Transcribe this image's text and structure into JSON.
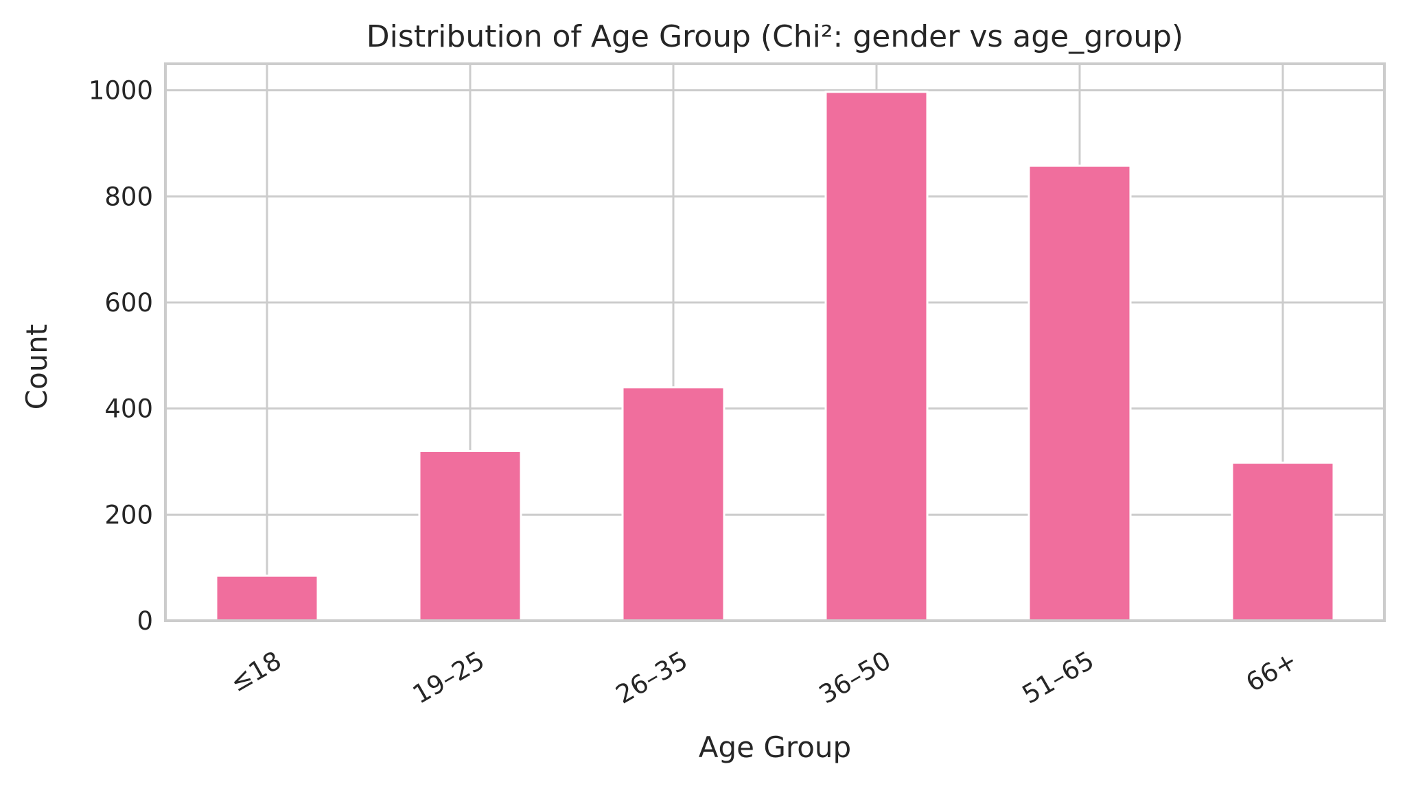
{
  "chart_data": {
    "type": "bar",
    "title": "Distribution of Age Group (Chi²: gender vs age_group)",
    "xlabel": "Age Group",
    "ylabel": "Count",
    "categories": [
      "≤18",
      "19–25",
      "26–35",
      "36–50",
      "51–65",
      "66+"
    ],
    "values": [
      85,
      320,
      440,
      997,
      858,
      298
    ],
    "ylim": [
      0,
      1050
    ],
    "yticks": [
      0,
      200,
      400,
      600,
      800,
      1000
    ],
    "bar_color": "#f06e9d",
    "grid": true,
    "legend": "none"
  }
}
